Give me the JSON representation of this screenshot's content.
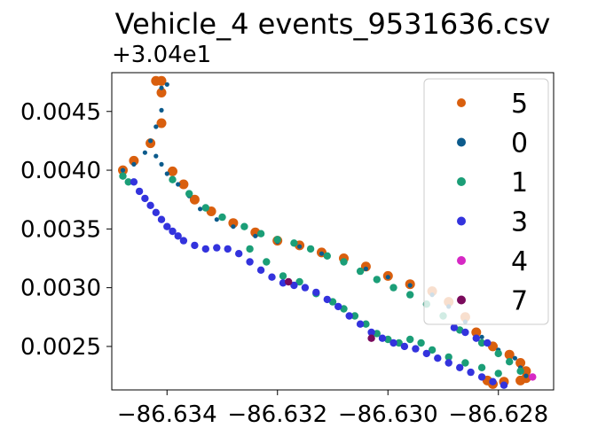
{
  "chart_data": {
    "type": "scatter",
    "title": "Vehicle_4 events_9531636.csv",
    "xlabel": "",
    "ylabel": "",
    "y_offset_label": "+3.04e1",
    "y_offset": 30.4,
    "xlim": [
      -86.635,
      -86.627
    ],
    "ylim": [
      0.00213,
      0.00483
    ],
    "x_ticks": [
      -86.634,
      -86.632,
      -86.63,
      -86.628
    ],
    "x_tick_labels": [
      "−86.634",
      "−86.632",
      "−86.630",
      "−86.628"
    ],
    "y_ticks": [
      0.0025,
      0.003,
      0.0035,
      0.004,
      0.0045
    ],
    "y_tick_labels": [
      "0.0025",
      "0.0030",
      "0.0035",
      "0.0040",
      "0.0045"
    ],
    "grid": false,
    "legend_position": "top-right",
    "series": [
      {
        "name": "5",
        "color": "#d95f0e",
        "marker_size": "large",
        "note": "stacked beneath others",
        "x": [
          -86.6348,
          -86.6346,
          -86.6343,
          -86.6341,
          -86.6341,
          -86.6342,
          -86.6341,
          -86.6339,
          -86.6337,
          -86.6335,
          -86.6332,
          -86.6328,
          -86.6324,
          -86.632,
          -86.6316,
          -86.6312,
          -86.6308,
          -86.6304,
          -86.63,
          -86.6296,
          -86.6292,
          -86.6289,
          -86.6286,
          -86.6284,
          -86.6281,
          -86.6278,
          -86.6276,
          -86.6275,
          -86.6275,
          -86.6276,
          -86.6279,
          -86.6281,
          -86.6282
        ],
        "y": [
          0.004,
          0.00408,
          0.00423,
          0.0044,
          0.00466,
          0.00476,
          0.00476,
          0.00399,
          0.00388,
          0.00375,
          0.00365,
          0.00355,
          0.00347,
          0.0034,
          0.00336,
          0.0033,
          0.00325,
          0.00318,
          0.0031,
          0.00303,
          0.00297,
          0.00288,
          0.00275,
          0.00262,
          0.0025,
          0.00243,
          0.00236,
          0.00229,
          0.00223,
          0.00221,
          0.0022,
          0.00218,
          0.00221
        ]
      },
      {
        "name": "0",
        "color": "#0c5b8c",
        "marker_size": "small",
        "x": [
          -86.6348,
          -86.6346,
          -86.6344,
          -86.6343,
          -86.6342,
          -86.6341,
          -86.634,
          -86.6341,
          -86.6342,
          -86.6341,
          -86.634,
          -86.6338,
          -86.6336,
          -86.6334,
          -86.6331,
          -86.6328,
          -86.6324,
          -86.632,
          -86.6316,
          -86.6312,
          -86.6308,
          -86.6304,
          -86.63,
          -86.6296,
          -86.6292,
          -86.6289,
          -86.6286,
          -86.6283,
          -86.628,
          -86.6277,
          -86.6276,
          -86.6275
        ],
        "y": [
          0.004,
          0.00405,
          0.00415,
          0.00425,
          0.00437,
          0.00451,
          0.00473,
          0.0047,
          0.00412,
          0.00405,
          0.00397,
          0.00388,
          0.00378,
          0.00367,
          0.00358,
          0.00352,
          0.00344,
          0.00339,
          0.00335,
          0.00329,
          0.00323,
          0.00316,
          0.00309,
          0.00302,
          0.00294,
          0.00284,
          0.00271,
          0.00258,
          0.00247,
          0.0024,
          0.00232,
          0.00225
        ]
      },
      {
        "name": "1",
        "color": "#1b9e77",
        "marker_size": "medium",
        "x": [
          -86.6339,
          -86.6336,
          -86.6333,
          -86.633,
          -86.6326,
          -86.6323,
          -86.632,
          -86.6317,
          -86.6314,
          -86.6311,
          -86.6308,
          -86.6305,
          -86.6302,
          -86.6299,
          -86.6296,
          -86.6293,
          -86.629,
          -86.6287,
          -86.6283,
          -86.628,
          -86.6278,
          -86.6276,
          -86.6325,
          -86.6322,
          -86.6319,
          -86.6316,
          -86.6313,
          -86.631,
          -86.6308,
          -86.6306,
          -86.6304,
          -86.6302,
          -86.63,
          -86.6298,
          -86.6296,
          -86.6294,
          -86.6292,
          -86.6289,
          -86.6286,
          -86.6283,
          -86.628,
          -86.6348,
          -86.6347
        ],
        "y": [
          0.00392,
          0.0038,
          0.00368,
          0.0036,
          0.00352,
          0.00346,
          0.00341,
          0.00338,
          0.00333,
          0.00327,
          0.00322,
          0.00314,
          0.00307,
          0.003,
          0.00294,
          0.00286,
          0.00276,
          0.00264,
          0.00253,
          0.00244,
          0.00237,
          0.00229,
          0.00333,
          0.00322,
          0.0031,
          0.00305,
          0.00295,
          0.00288,
          0.00282,
          0.00276,
          0.00269,
          0.00261,
          0.00256,
          0.00253,
          0.00256,
          0.00253,
          0.00247,
          0.00241,
          0.00236,
          0.00232,
          0.00227,
          0.00395,
          0.0039
        ]
      },
      {
        "name": "3",
        "color": "#3333dd",
        "marker_size": "medium",
        "x": [
          -86.6346,
          -86.6345,
          -86.6344,
          -86.6343,
          -86.6342,
          -86.6341,
          -86.634,
          -86.6339,
          -86.6338,
          -86.6337,
          -86.6335,
          -86.6333,
          -86.6331,
          -86.6329,
          -86.6327,
          -86.6325,
          -86.6323,
          -86.6321,
          -86.6319,
          -86.6317,
          -86.6315,
          -86.6313,
          -86.6311,
          -86.6309,
          -86.6307,
          -86.6305,
          -86.6303,
          -86.6301,
          -86.6299,
          -86.6297,
          -86.6295,
          -86.6293,
          -86.6291,
          -86.6289,
          -86.6287,
          -86.6285,
          -86.6283,
          -86.6281,
          -86.6279,
          -86.6288,
          -86.6286,
          -86.6284,
          -86.6282
        ],
        "y": [
          0.0039,
          0.00382,
          0.00376,
          0.0037,
          0.00364,
          0.00358,
          0.00352,
          0.00348,
          0.00344,
          0.0034,
          0.00336,
          0.00333,
          0.00334,
          0.00333,
          0.00329,
          0.00322,
          0.00315,
          0.00309,
          0.00304,
          0.00302,
          0.003,
          0.00296,
          0.0029,
          0.00284,
          0.00276,
          0.00269,
          0.00262,
          0.00257,
          0.00253,
          0.0025,
          0.00248,
          0.00244,
          0.0024,
          0.00236,
          0.00232,
          0.00228,
          0.00224,
          0.0022,
          0.00217,
          0.00266,
          0.00262,
          0.00257,
          0.00253
        ]
      },
      {
        "name": "4",
        "color": "#d628c4",
        "marker_size": "medium",
        "x": [
          -86.62738
        ],
        "y": [
          0.00224
        ]
      },
      {
        "name": "7",
        "color": "#7a0a5c",
        "marker_size": "medium",
        "x": [
          -86.6318,
          -86.6303
        ],
        "y": [
          0.00305,
          0.00257
        ]
      }
    ]
  }
}
